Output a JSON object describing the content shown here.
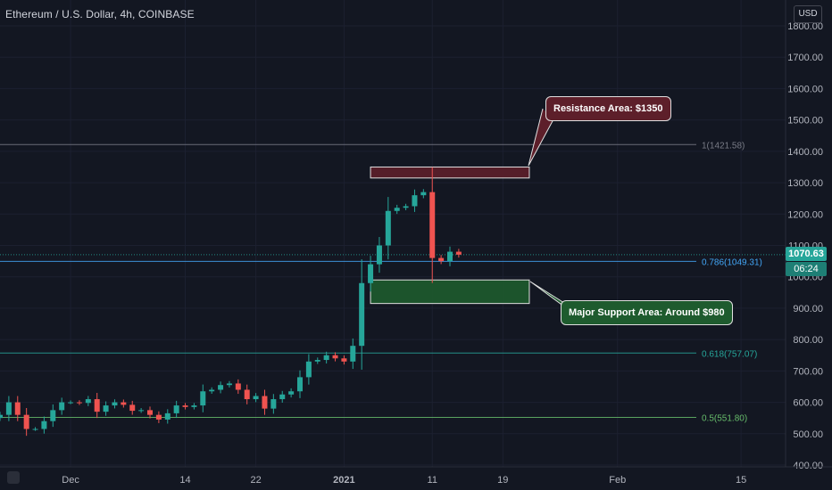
{
  "header": {
    "title": "Ethereum / U.S. Dollar, 4h, COINBASE",
    "currency_button": "USD"
  },
  "price_scale": {
    "current_price": "1070.63",
    "countdown": "06:24",
    "current_color": "#26a69a"
  },
  "annotations": {
    "resistance": "Resistance Area: $1350",
    "support": "Major Support Area: Around $980"
  },
  "colors": {
    "background": "#131722",
    "up": "#26a69a",
    "down": "#ef5350",
    "resistance_zone": "#5d1f2a",
    "support_zone": "#1e5b2e"
  },
  "chart_data": {
    "type": "candlestick",
    "symbol": "Ethereum / U.S. Dollar",
    "interval": "4h",
    "exchange": "COINBASE",
    "currency": "USD",
    "y_range": [
      400,
      1800
    ],
    "y_ticks": [
      400,
      500,
      600,
      700,
      800,
      900,
      1000,
      1100,
      1200,
      1300,
      1400,
      1500,
      1600,
      1700,
      1800
    ],
    "y_tick_labels": [
      "400.00",
      "500.00",
      "600.00",
      "700.00",
      "800.00",
      "900.00",
      "1000.00",
      "1100.00",
      "1200.00",
      "1300.00",
      "1400.00",
      "1500.00",
      "1600.00",
      "1700.00",
      "1800.00"
    ],
    "x_range": [
      "2020-11-23",
      "2021-02-16"
    ],
    "x_ticks": [
      {
        "date": "2020-12-01",
        "label": "Dec"
      },
      {
        "date": "2020-12-14",
        "label": "14"
      },
      {
        "date": "2020-12-22",
        "label": "22"
      },
      {
        "date": "2021-01-01",
        "label": "2021"
      },
      {
        "date": "2021-01-11",
        "label": "11"
      },
      {
        "date": "2021-01-19",
        "label": "19"
      },
      {
        "date": "2021-02-01",
        "label": "Feb"
      },
      {
        "date": "2021-02-15",
        "label": "15"
      }
    ],
    "fib_levels": [
      {
        "ratio": "1",
        "value": 1421.58,
        "label": "1(1421.58)",
        "color": "#787b86"
      },
      {
        "ratio": "0.786",
        "value": 1049.31,
        "label": "0.786(1049.31)",
        "color": "#42a5f5"
      },
      {
        "ratio": "0.618",
        "value": 757.07,
        "label": "0.618(757.07)",
        "color": "#26a69a"
      },
      {
        "ratio": "0.5",
        "value": 551.8,
        "label": "0.5(551.80)",
        "color": "#66bb6a"
      }
    ],
    "zones": [
      {
        "name": "resistance",
        "from": 1315,
        "to": 1350,
        "start": "2021-01-04",
        "end": "2021-01-22"
      },
      {
        "name": "support",
        "from": 915,
        "to": 990,
        "start": "2021-01-04",
        "end": "2021-01-22"
      }
    ],
    "last_price": 1070.63,
    "series": [
      {
        "date": "2020-11-23",
        "close": 560
      },
      {
        "date": "2020-11-24",
        "close": 600
      },
      {
        "date": "2020-11-25",
        "close": 560
      },
      {
        "date": "2020-11-26",
        "close": 515
      },
      {
        "date": "2020-11-27",
        "close": 515
      },
      {
        "date": "2020-11-28",
        "close": 540
      },
      {
        "date": "2020-11-29",
        "close": 575
      },
      {
        "date": "2020-11-30",
        "close": 600
      },
      {
        "date": "2020-12-01",
        "close": 600
      },
      {
        "date": "2020-12-02",
        "close": 598
      },
      {
        "date": "2020-12-03",
        "close": 610
      },
      {
        "date": "2020-12-04",
        "close": 570
      },
      {
        "date": "2020-12-05",
        "close": 590
      },
      {
        "date": "2020-12-06",
        "close": 600
      },
      {
        "date": "2020-12-07",
        "close": 592
      },
      {
        "date": "2020-12-08",
        "close": 573
      },
      {
        "date": "2020-12-09",
        "close": 575
      },
      {
        "date": "2020-12-10",
        "close": 560
      },
      {
        "date": "2020-12-11",
        "close": 545
      },
      {
        "date": "2020-12-12",
        "close": 565
      },
      {
        "date": "2020-12-13",
        "close": 590
      },
      {
        "date": "2020-12-14",
        "close": 585
      },
      {
        "date": "2020-12-15",
        "close": 590
      },
      {
        "date": "2020-12-16",
        "close": 635
      },
      {
        "date": "2020-12-17",
        "close": 640
      },
      {
        "date": "2020-12-18",
        "close": 655
      },
      {
        "date": "2020-12-19",
        "close": 660
      },
      {
        "date": "2020-12-20",
        "close": 640
      },
      {
        "date": "2020-12-21",
        "close": 610
      },
      {
        "date": "2020-12-22",
        "close": 620
      },
      {
        "date": "2020-12-23",
        "close": 580
      },
      {
        "date": "2020-12-24",
        "close": 610
      },
      {
        "date": "2020-12-25",
        "close": 625
      },
      {
        "date": "2020-12-26",
        "close": 635
      },
      {
        "date": "2020-12-27",
        "close": 680
      },
      {
        "date": "2020-12-28",
        "close": 730
      },
      {
        "date": "2020-12-29",
        "close": 735
      },
      {
        "date": "2020-12-30",
        "close": 750
      },
      {
        "date": "2020-12-31",
        "close": 740
      },
      {
        "date": "2021-01-01",
        "close": 730
      },
      {
        "date": "2021-01-02",
        "close": 780
      },
      {
        "date": "2021-01-03",
        "close": 980
      },
      {
        "date": "2021-01-04",
        "close": 1040
      },
      {
        "date": "2021-01-05",
        "close": 1100
      },
      {
        "date": "2021-01-06",
        "close": 1210
      },
      {
        "date": "2021-01-07",
        "close": 1220
      },
      {
        "date": "2021-01-08",
        "close": 1225
      },
      {
        "date": "2021-01-09",
        "close": 1260
      },
      {
        "date": "2021-01-10",
        "close": 1270
      },
      {
        "date": "2021-01-11",
        "close": 1060
      },
      {
        "date": "2021-01-12",
        "close": 1050
      },
      {
        "date": "2021-01-13",
        "close": 1080
      },
      {
        "date": "2021-01-14",
        "close": 1070.63
      }
    ]
  }
}
